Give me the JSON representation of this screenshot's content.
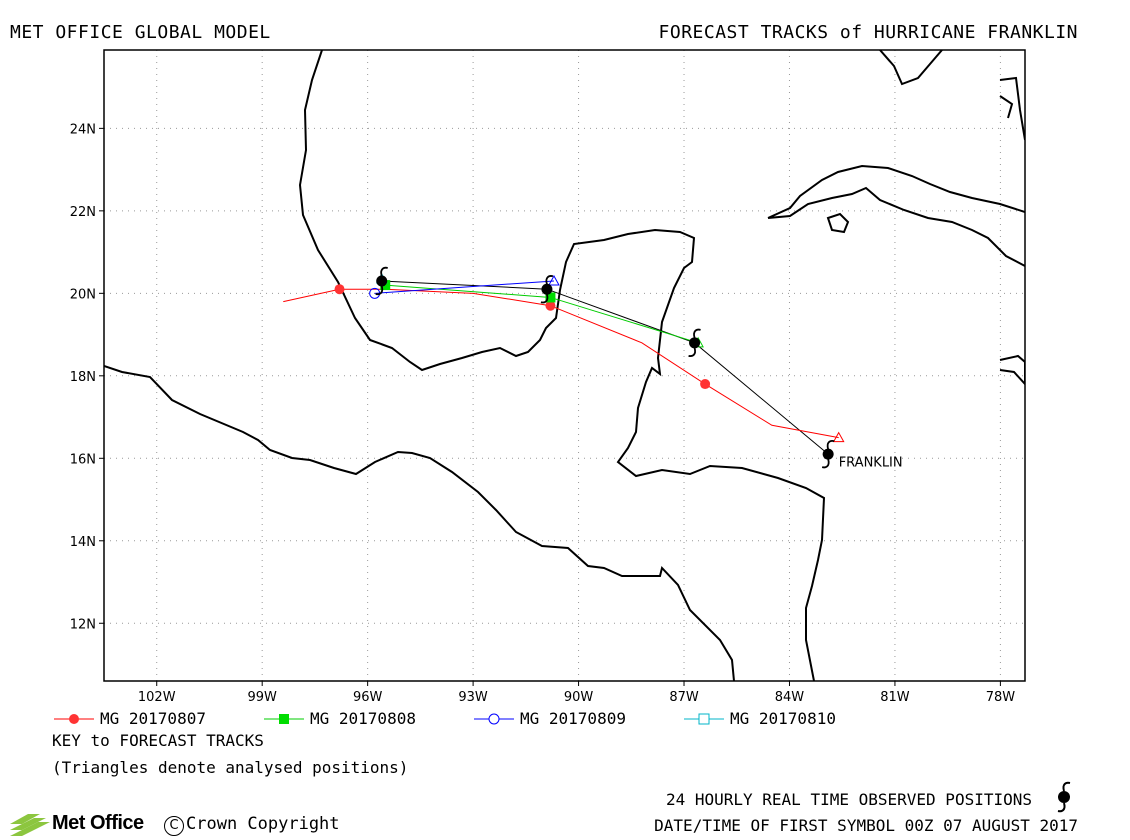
{
  "header": {
    "title_left": "MET OFFICE GLOBAL MODEL",
    "title_right": "FORECAST TRACKS of HURRICANE FRANKLIN"
  },
  "map": {
    "lon_range": [
      -103.5,
      -77.3
    ],
    "lat_range": [
      10.6,
      25.9
    ],
    "x_ticks": [
      {
        "lon": -102,
        "label": "102W"
      },
      {
        "lon": -99,
        "label": "99W"
      },
      {
        "lon": -96,
        "label": "96W"
      },
      {
        "lon": -93,
        "label": "93W"
      },
      {
        "lon": -90,
        "label": "90W"
      },
      {
        "lon": -87,
        "label": "87W"
      },
      {
        "lon": -84,
        "label": "84W"
      },
      {
        "lon": -81,
        "label": "81W"
      },
      {
        "lon": -78,
        "label": "78W"
      }
    ],
    "y_ticks": [
      {
        "lat": 24,
        "label": "24N"
      },
      {
        "lat": 22,
        "label": "22N"
      },
      {
        "lat": 20,
        "label": "20N"
      },
      {
        "lat": 18,
        "label": "18N"
      },
      {
        "lat": 16,
        "label": "16N"
      },
      {
        "lat": 14,
        "label": "14N"
      },
      {
        "lat": 12,
        "label": "12N"
      }
    ],
    "storm_label": "FRANKLIN",
    "storm_label_pos": {
      "lon": -82.6,
      "lat": 15.8
    },
    "observed_track": [
      [
        -82.9,
        16.1
      ],
      [
        -86.7,
        18.8
      ],
      [
        -90.9,
        20.1
      ],
      [
        -95.6,
        20.3
      ]
    ],
    "forecast_tracks": [
      {
        "name": "MG 20170807",
        "color": "#ff0000",
        "marker": "filled-circle",
        "analysed": [
          -82.6,
          16.5
        ],
        "points": [
          [
            -82.6,
            16.5
          ],
          [
            -84.5,
            16.8
          ],
          [
            -86.4,
            17.8
          ],
          [
            -88.2,
            18.8
          ],
          [
            -90.8,
            19.7
          ],
          [
            -93.0,
            20.0
          ],
          [
            -95.5,
            20.1
          ],
          [
            -96.8,
            20.1
          ],
          [
            -98.4,
            19.8
          ]
        ],
        "markers": [
          [
            -86.4,
            17.8
          ],
          [
            -90.8,
            19.7
          ],
          [
            -96.8,
            20.1
          ]
        ]
      },
      {
        "name": "MG 20170808",
        "color": "#00cc00",
        "marker": "filled-square",
        "analysed": [
          -86.6,
          18.8
        ],
        "points": [
          [
            -86.6,
            18.8
          ],
          [
            -90.8,
            19.9
          ],
          [
            -95.5,
            20.2
          ]
        ],
        "markers": [
          [
            -90.8,
            19.9
          ],
          [
            -95.5,
            20.2
          ]
        ]
      },
      {
        "name": "MG 20170809",
        "color": "#0000ff",
        "marker": "open-circle",
        "analysed": [
          -90.7,
          20.3
        ],
        "points": [
          [
            -90.7,
            20.3
          ],
          [
            -95.8,
            20.0
          ]
        ],
        "markers": [
          [
            -95.8,
            20.0
          ]
        ]
      },
      {
        "name": "MG 20170810",
        "color": "#00b4c8",
        "marker": "open-square",
        "analysed": [
          -95.6,
          20.35
        ],
        "points": [],
        "markers": []
      }
    ]
  },
  "legend": {
    "items": [
      {
        "label": "MG 20170807",
        "color": "#ff0000",
        "marker": "filled-circle"
      },
      {
        "label": "MG 20170808",
        "color": "#00cc00",
        "marker": "filled-square"
      },
      {
        "label": "MG 20170809",
        "color": "#0000ff",
        "marker": "open-circle"
      },
      {
        "label": "MG 20170810",
        "color": "#00b4c8",
        "marker": "open-square"
      }
    ],
    "key_title": "KEY to FORECAST TRACKS",
    "key_note": "(Triangles denote analysed positions)"
  },
  "footer": {
    "observed_text": "24 HOURLY REAL TIME OBSERVED POSITIONS",
    "date_text": "DATE/TIME OF FIRST SYMBOL 00Z 07 AUGUST 2017",
    "logo_text": "Met Office",
    "copyright_symbol": "C",
    "copyright_text": "Crown Copyright"
  }
}
